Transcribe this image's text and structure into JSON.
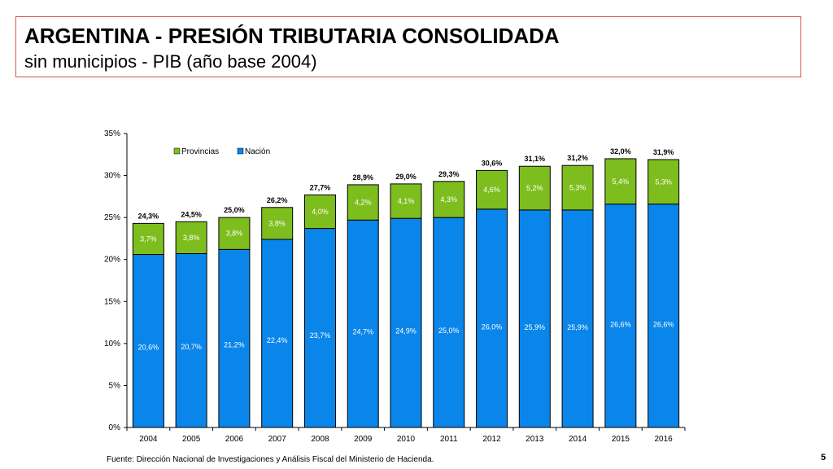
{
  "header": {
    "title": "ARGENTINA - PRESIÓN TRIBUTARIA CONSOLIDADA",
    "subtitle": "sin municipios - PIB (año base 2004)"
  },
  "footer": {
    "source": "Fuente: Dirección Nacional de Investigaciones y Análisis Fiscal del Ministerio de Hacienda.",
    "page_number": "5"
  },
  "colors": {
    "nacion": "#0a85ea",
    "provincias": "#7ebd1e",
    "outline": "#000000",
    "title_border": "#d9534f"
  },
  "chart_data": {
    "type": "bar",
    "stacked": true,
    "categories": [
      "2004",
      "2005",
      "2006",
      "2007",
      "2008",
      "2009",
      "2010",
      "2011",
      "2012",
      "2013",
      "2014",
      "2015",
      "2016"
    ],
    "series": [
      {
        "name": "Nación",
        "values": [
          20.6,
          20.7,
          21.2,
          22.4,
          23.7,
          24.7,
          24.9,
          25.0,
          26.0,
          25.9,
          25.9,
          26.6,
          26.6
        ],
        "labels": [
          "20,6%",
          "20,7%",
          "21,2%",
          "22,4%",
          "23,7%",
          "24,7%",
          "24,9%",
          "25,0%",
          "26,0%",
          "25,9%",
          "25,9%",
          "26,6%",
          "26,6%"
        ]
      },
      {
        "name": "Provincias",
        "values": [
          3.7,
          3.8,
          3.8,
          3.8,
          4.0,
          4.2,
          4.1,
          4.3,
          4.6,
          5.2,
          5.3,
          5.4,
          5.3
        ],
        "labels": [
          "3,7%",
          "3,8%",
          "3,8%",
          "3,8%",
          "4,0%",
          "4,2%",
          "4,1%",
          "4,3%",
          "4,6%",
          "5,2%",
          "5,3%",
          "5,4%",
          "5,3%"
        ]
      }
    ],
    "totals": [
      24.3,
      24.5,
      25.0,
      26.2,
      27.7,
      28.9,
      29.0,
      29.3,
      30.6,
      31.1,
      31.2,
      32.0,
      31.9
    ],
    "total_labels": [
      "24,3%",
      "24,5%",
      "25,0%",
      "26,2%",
      "27,7%",
      "28,9%",
      "29,0%",
      "29,3%",
      "30,6%",
      "31,1%",
      "31,2%",
      "32,0%",
      "31,9%"
    ],
    "ylim": [
      0,
      35
    ],
    "yticks": [
      0,
      5,
      10,
      15,
      20,
      25,
      30,
      35
    ],
    "ytick_labels": [
      "0%",
      "5%",
      "10%",
      "15%",
      "20%",
      "25%",
      "30%",
      "35%"
    ],
    "legend": {
      "placement": "top-left",
      "entries": [
        "Provincias",
        "Nación"
      ]
    },
    "grid": false
  }
}
